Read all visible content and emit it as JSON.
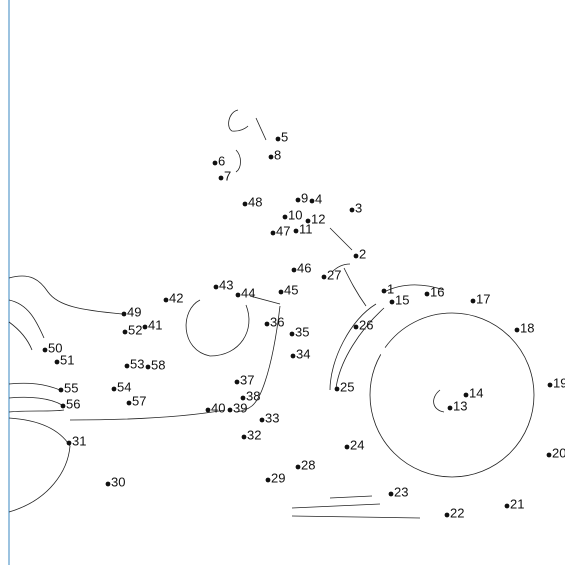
{
  "dots": [
    "1",
    "2",
    "3",
    "4",
    "5",
    "6",
    "7",
    "8",
    "9",
    "10",
    "11",
    "12",
    "13",
    "14",
    "15",
    "16",
    "17",
    "18",
    "19",
    "20",
    "21",
    "22",
    "23",
    "24",
    "25",
    "26",
    "27",
    "28",
    "29",
    "30",
    "31",
    "32",
    "33",
    "34",
    "35",
    "36",
    "37",
    "38",
    "39",
    "40",
    "41",
    "42",
    "43",
    "44",
    "45",
    "46",
    "47",
    "48",
    "49",
    "50",
    "51",
    "52",
    "53",
    "54",
    "55",
    "56",
    "57",
    "58"
  ]
}
